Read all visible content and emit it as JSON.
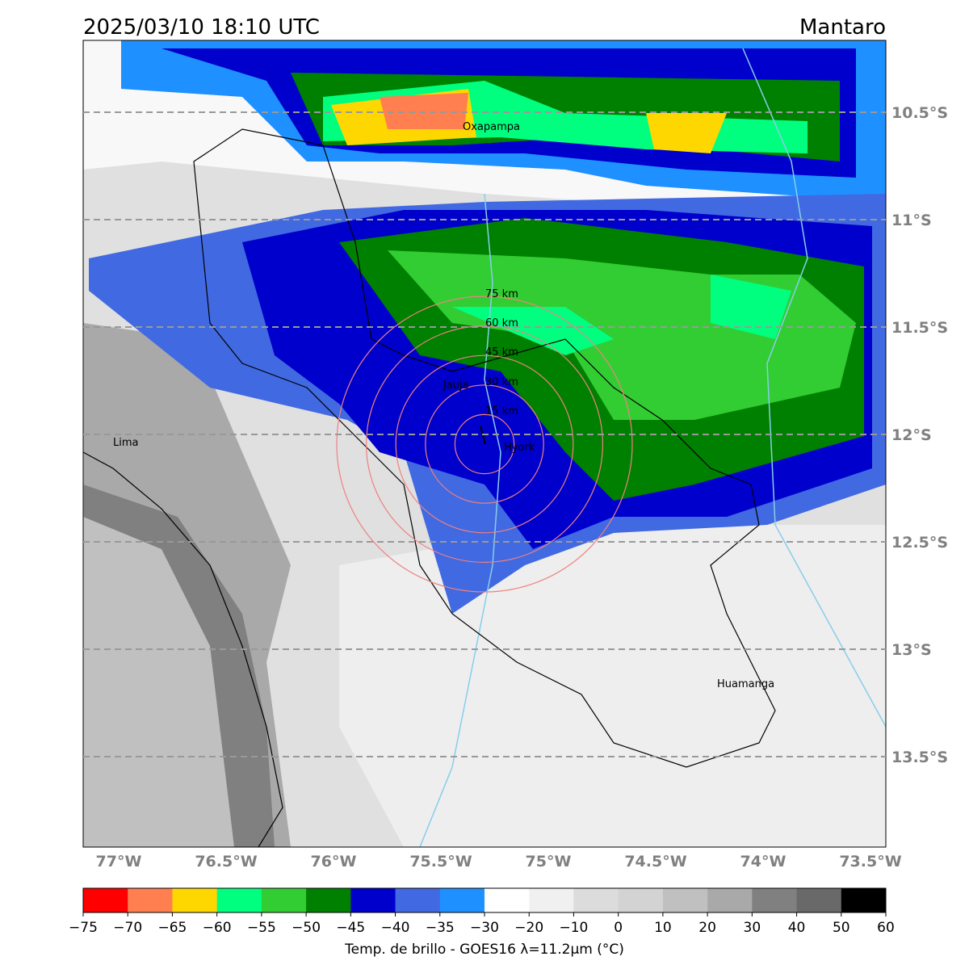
{
  "header": {
    "title": "2025/03/10 18:10 UTC",
    "region": "Mantaro"
  },
  "map": {
    "lat_labels": [
      "10.5°S",
      "11°S",
      "11.5°S",
      "12°S",
      "12.5°S",
      "13°S",
      "13.5°S"
    ],
    "lon_labels": [
      "77°W",
      "76.5°W",
      "76°W",
      "75.5°W",
      "75°W",
      "74.5°W",
      "74°W",
      "73.5°W"
    ],
    "places": [
      "Oxapampa",
      "Lima",
      "Jauja",
      "Hyork",
      "Huamanga"
    ],
    "rings": [
      "75 km",
      "60 km",
      "45 km",
      "30 km",
      "15 km"
    ]
  },
  "colorbar": {
    "ticks": [
      "−75",
      "−70",
      "−65",
      "−60",
      "−55",
      "−50",
      "−45",
      "−40",
      "−35",
      "−30",
      "−20",
      "−10",
      "0",
      "10",
      "20",
      "30",
      "40",
      "50",
      "60"
    ],
    "colors": [
      "#ff0000",
      "#ff7f50",
      "#ffd700",
      "#00ff7f",
      "#32cd32",
      "#008000",
      "#0000cd",
      "#4169e1",
      "#1e90ff",
      "#ffffff",
      "#f0f0f0",
      "#dcdcdc",
      "#d3d3d3",
      "#c0c0c0",
      "#a9a9a9",
      "#808080",
      "#696969",
      "#000000"
    ],
    "label": "Temp. de brillo - GOES16 λ=11.2μm (°C)"
  }
}
